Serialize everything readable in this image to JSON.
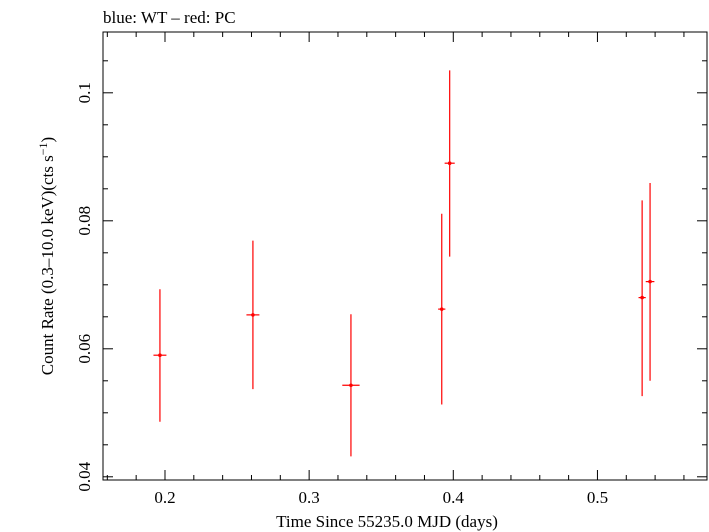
{
  "title": "blue: WT – red: PC",
  "chart_data": {
    "type": "scatter",
    "xlabel": "Time Since 55235.0 MJD (days)",
    "ylabel_main": "Count Rate (0.3–10.0 keV)(cts s",
    "ylabel_sup": "−1",
    "ylabel_close": ")",
    "xlim": [
      0.157,
      0.576
    ],
    "ylim": [
      0.0395,
      0.1095
    ],
    "xticks": [
      {
        "value": 0.2,
        "label": "0.2"
      },
      {
        "value": 0.3,
        "label": "0.3"
      },
      {
        "value": 0.4,
        "label": "0.4"
      },
      {
        "value": 0.5,
        "label": "0.5"
      }
    ],
    "yticks": [
      {
        "value": 0.04,
        "label": "0.04"
      },
      {
        "value": 0.06,
        "label": "0.06"
      },
      {
        "value": 0.08,
        "label": "0.08"
      },
      {
        "value": 0.1,
        "label": "0.1"
      }
    ],
    "series": [
      {
        "name": "PC",
        "color": "#ff0000",
        "points": [
          {
            "x": 0.1965,
            "y": 0.059,
            "xerr": 0.0045,
            "ylo": 0.0486,
            "yhi": 0.0693
          },
          {
            "x": 0.261,
            "y": 0.0653,
            "xerr": 0.0045,
            "ylo": 0.0537,
            "yhi": 0.0769
          },
          {
            "x": 0.329,
            "y": 0.0543,
            "xerr": 0.006,
            "ylo": 0.0432,
            "yhi": 0.0654
          },
          {
            "x": 0.392,
            "y": 0.0662,
            "xerr": 0.0025,
            "ylo": 0.0513,
            "yhi": 0.0811
          },
          {
            "x": 0.3975,
            "y": 0.089,
            "xerr": 0.0035,
            "ylo": 0.0744,
            "yhi": 0.1035
          },
          {
            "x": 0.531,
            "y": 0.068,
            "xerr": 0.0025,
            "ylo": 0.0526,
            "yhi": 0.0832
          },
          {
            "x": 0.5365,
            "y": 0.0705,
            "xerr": 0.003,
            "ylo": 0.055,
            "yhi": 0.0859
          }
        ]
      }
    ]
  }
}
